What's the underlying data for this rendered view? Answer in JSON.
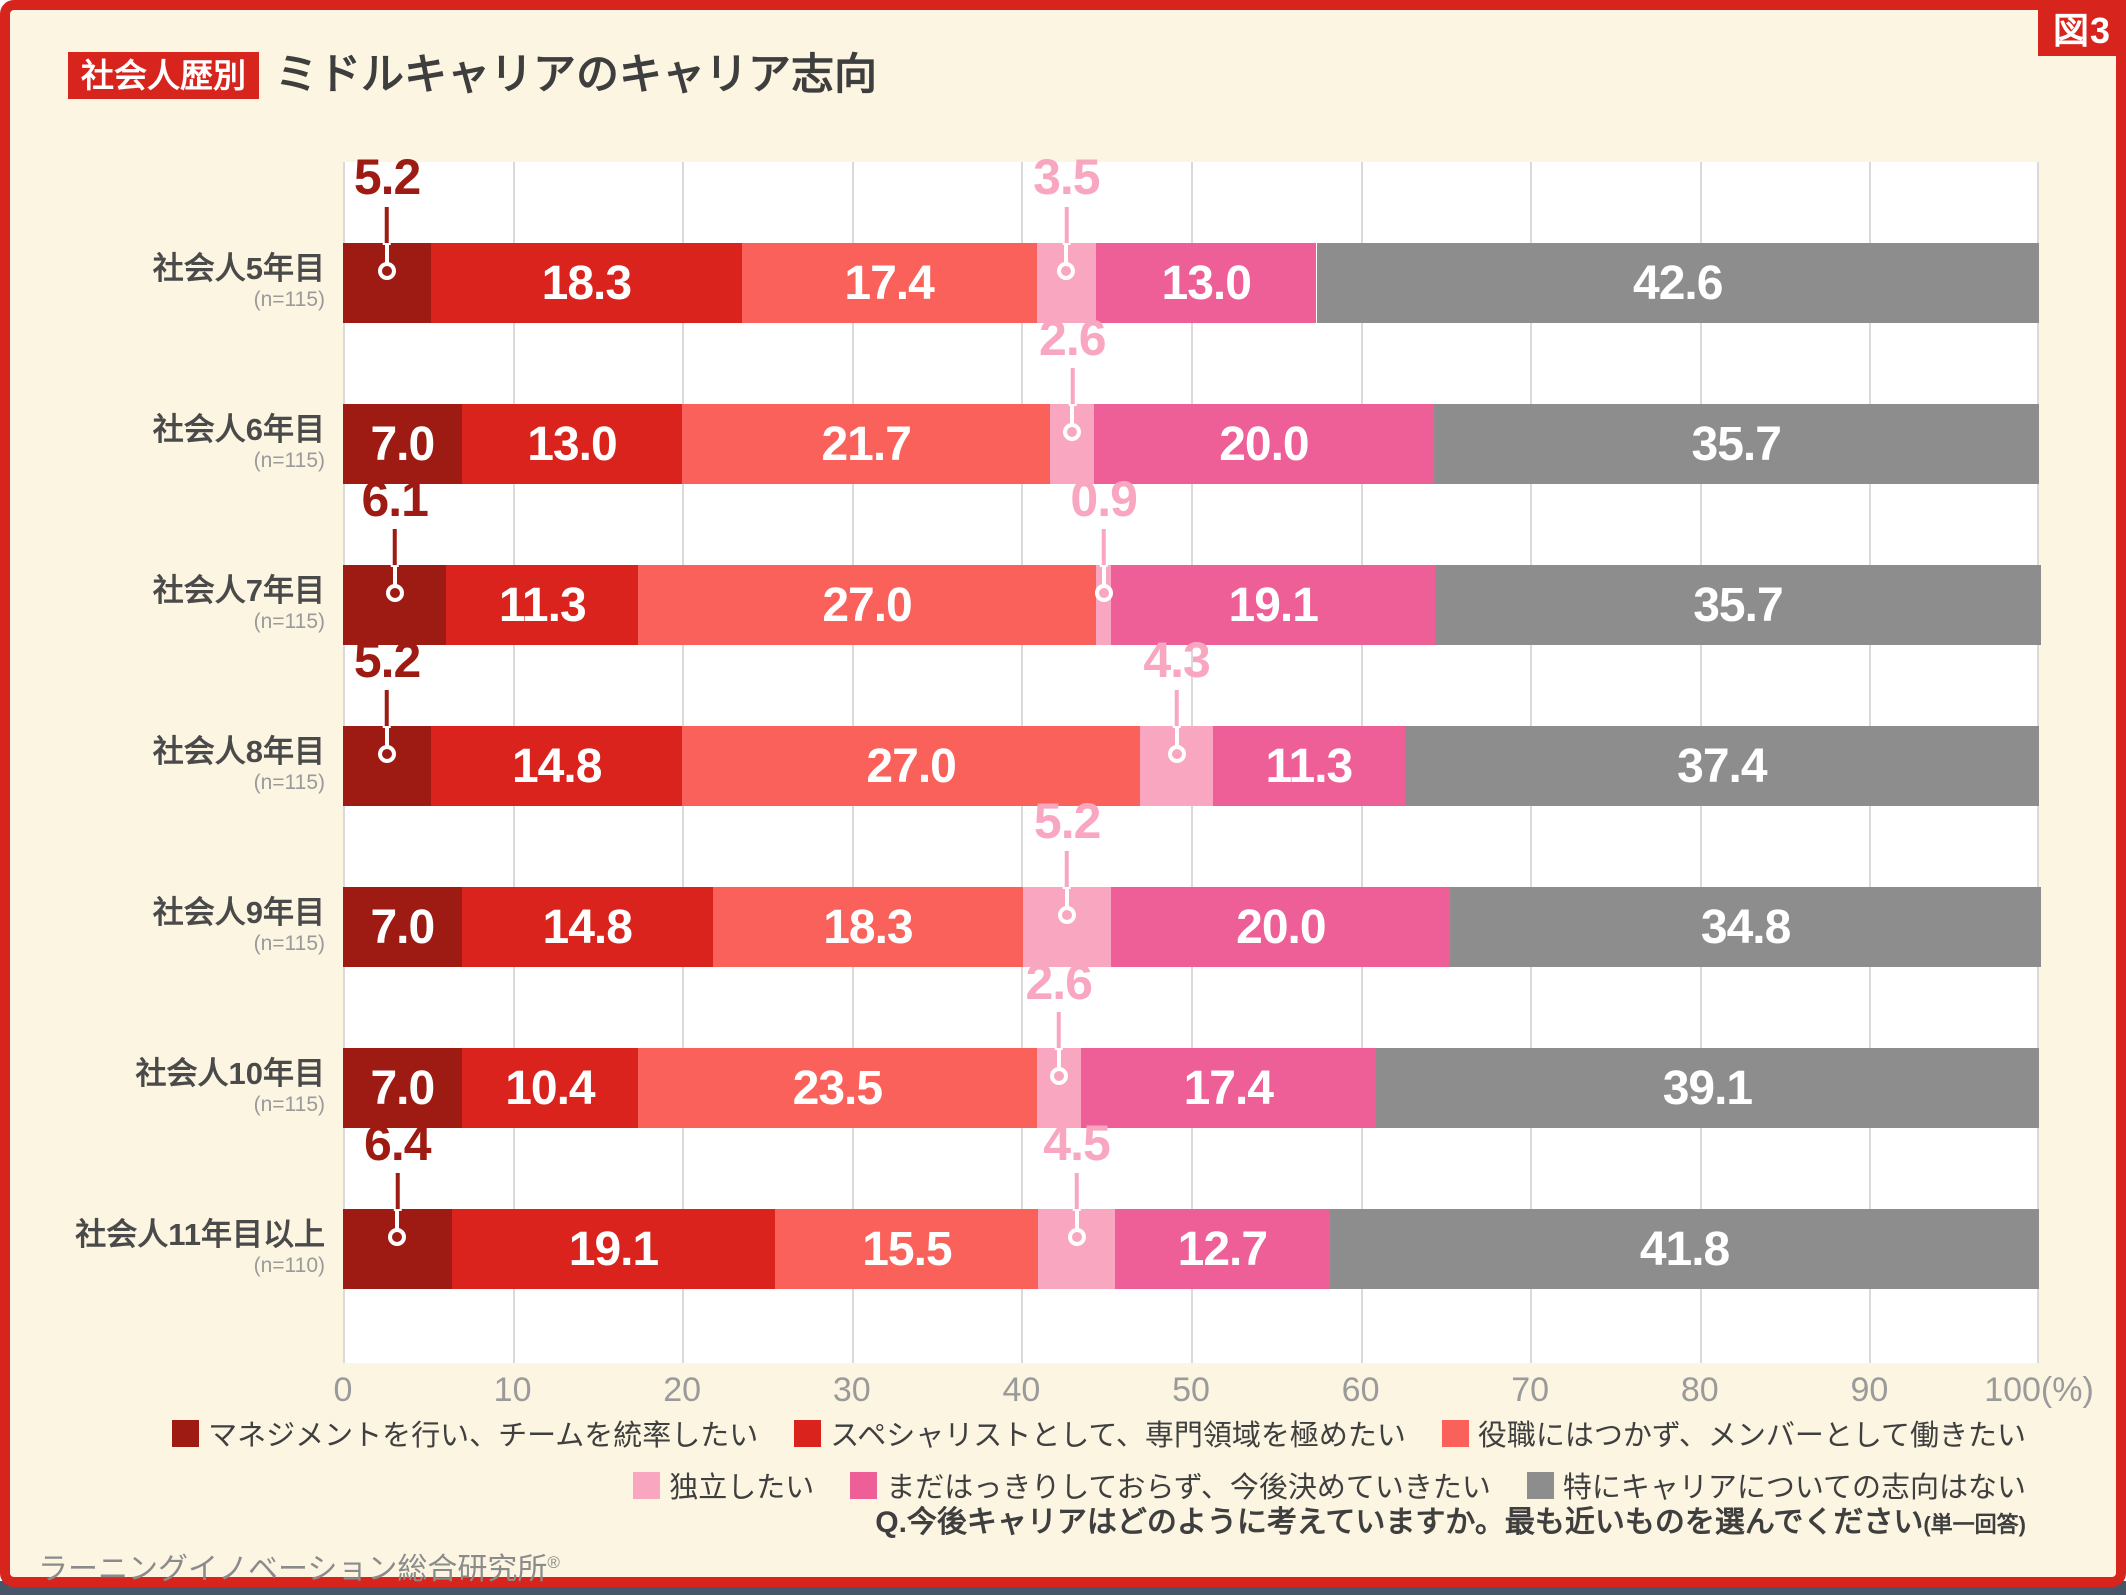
{
  "figure_tag": "図3",
  "header": {
    "badge": "社会人歴別",
    "title": "ミドルキャリアのキャリア志向"
  },
  "footer": {
    "question": "Q.今後キャリアはどのように考えていますか。最も近いものを選んでください",
    "question_note": "(単一回答)",
    "source": "ラーニングイノベーション総合研究所",
    "source_mark": "®"
  },
  "colors": {
    "frame_red": "#d7251e",
    "background_cream": "#fbf5e2",
    "plot_white": "#ffffff",
    "gridline": "#dadada",
    "bottom_strip": "#475569",
    "axis_text": "#9a9a9a",
    "label_text": "#4a4a4a"
  },
  "chart_data": {
    "type": "bar",
    "stacked": true,
    "orientation": "horizontal",
    "unit": "%",
    "title": "社会人歴別 ミドルキャリアのキャリア志向",
    "xlim": [
      0,
      100
    ],
    "x_ticks": [
      "0",
      "10",
      "20",
      "30",
      "40",
      "50",
      "60",
      "70",
      "80",
      "90",
      "100(%)"
    ],
    "grid": true,
    "legend_position": "bottom",
    "legend_rows": [
      [
        0,
        1,
        2
      ],
      [
        3,
        4,
        5
      ]
    ],
    "series": [
      {
        "name": "マネジメントを行い、チームを統率したい",
        "color": "#9d1b12",
        "values": [
          5.2,
          7.0,
          6.1,
          5.2,
          7.0,
          7.0,
          6.4
        ]
      },
      {
        "name": "スペシャリストとして、専門領域を極めたい",
        "color": "#d9231c",
        "values": [
          18.3,
          13.0,
          11.3,
          14.8,
          14.8,
          10.4,
          19.1
        ]
      },
      {
        "name": "役職にはつかず、メンバーとして働きたい",
        "color": "#f9615a",
        "values": [
          17.4,
          21.7,
          27.0,
          27.0,
          18.3,
          23.5,
          15.5
        ]
      },
      {
        "name": "独立したい",
        "color": "#f9a6c1",
        "values": [
          3.5,
          2.6,
          0.9,
          4.3,
          5.2,
          2.6,
          4.5
        ]
      },
      {
        "name": "まだはっきりしておらず、今後決めていきたい",
        "color": "#ee5e97",
        "values": [
          13.0,
          20.0,
          19.1,
          11.3,
          20.0,
          17.4,
          12.7
        ]
      },
      {
        "name": "特にキャリアについての志向はない",
        "color": "#8d8d8d",
        "values": [
          42.6,
          35.7,
          35.7,
          37.4,
          34.8,
          39.1,
          41.8
        ]
      }
    ],
    "categories": [
      {
        "label": "社会人5年目",
        "n": "(n=115)",
        "first_label_above": true
      },
      {
        "label": "社会人6年目",
        "n": "(n=115)",
        "first_label_above": false
      },
      {
        "label": "社会人7年目",
        "n": "(n=115)",
        "first_label_above": true
      },
      {
        "label": "社会人8年目",
        "n": "(n=115)",
        "first_label_above": true
      },
      {
        "label": "社会人9年目",
        "n": "(n=115)",
        "first_label_above": false
      },
      {
        "label": "社会人10年目",
        "n": "(n=115)",
        "first_label_above": false
      },
      {
        "label": "社会人11年目以上",
        "n": "(n=110)",
        "first_label_above": true
      }
    ]
  }
}
